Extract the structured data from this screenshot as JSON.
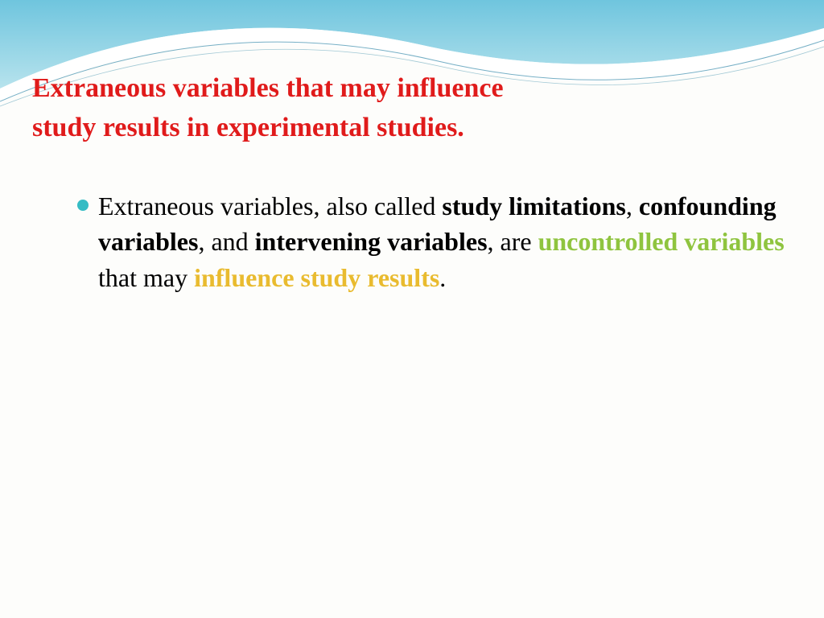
{
  "colors": {
    "title": "#e01b1b",
    "bullet": "#35bcc4",
    "text_default": "#000000",
    "accent_green": "#8fc43f",
    "accent_yellow": "#e9bb2f",
    "wave_top": "#6fc5de",
    "wave_light": "#b7e3ed",
    "wave_white": "#ffffff",
    "wave_line": "#1a7a9e"
  },
  "title": {
    "line1": "Extraneous variables that may influence",
    "line2": "study results in experimental studies.",
    "fontsize": 34,
    "fontweight": "bold"
  },
  "bullet": {
    "fontsize": 32,
    "segments": [
      {
        "text": "Extraneous variables, also called ",
        "bold": false,
        "color": "#000000"
      },
      {
        "text": "study limitations",
        "bold": true,
        "color": "#000000"
      },
      {
        "text": ", ",
        "bold": false,
        "color": "#000000"
      },
      {
        "text": "confounding variables",
        "bold": true,
        "color": "#000000"
      },
      {
        "text": ", and ",
        "bold": false,
        "color": "#000000"
      },
      {
        "text": "intervening variables",
        "bold": true,
        "color": "#000000"
      },
      {
        "text": ", are ",
        "bold": false,
        "color": "#000000"
      },
      {
        "text": "uncontrolled variables ",
        "bold": true,
        "color": "#8fc43f"
      },
      {
        "text": "that may ",
        "bold": false,
        "color": "#000000"
      },
      {
        "text": "influence study results",
        "bold": true,
        "color": "#e9bb2f"
      },
      {
        "text": ".",
        "bold": false,
        "color": "#000000"
      }
    ]
  }
}
